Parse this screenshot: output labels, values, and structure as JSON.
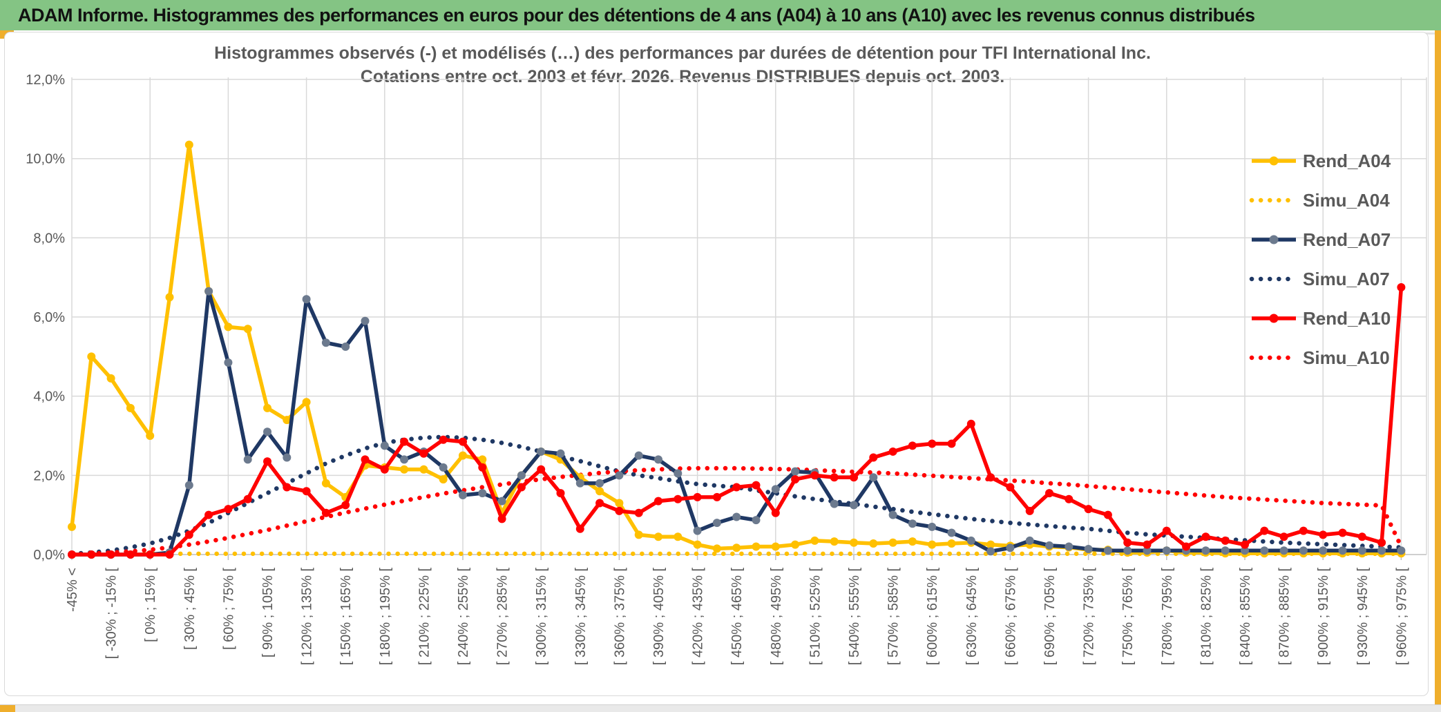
{
  "header": {
    "title": "ADAM Informe. Histogrammes des performances en euros pour des détentions de 4 ans (A04) à 10 ans (A10) avec les revenus connus distribués",
    "bg_color": "#84c484",
    "accent_gold": "#efae2c"
  },
  "chart_data": {
    "type": "line",
    "title_line1": "Histogrammes observés (-) et modélisés (…) des performances par durées de détention pour TFI International Inc.",
    "title_line2": "Cotations entre oct. 2003 et févr. 2026. Revenus DISTRIBUES depuis oct. 2003.",
    "ylim": [
      0,
      12
    ],
    "ytick_step": 2,
    "ytick_labels": [
      "0,0%",
      "2,0%",
      "4,0%",
      "6,0%",
      "8,0%",
      "10,0%",
      "12,0%"
    ],
    "grid": true,
    "legend_position": "right-upper",
    "text_color": "#595959",
    "grid_color": "#d9d9d9",
    "axis_color": "#bfbfbf",
    "categories": [
      "-45% <",
      "",
      "[ -30% ; -15% [",
      "",
      "[ 0% ; 15% [",
      "",
      "[ 30% ; 45% [",
      "",
      "[ 60% ; 75% [",
      "",
      "[ 90% ; 105% [",
      "",
      "[ 120% ; 135% [",
      "",
      "[ 150% ; 165% [",
      "",
      "[ 180% ; 195% [",
      "",
      "[ 210% ; 225% [",
      "",
      "[ 240% ; 255% [",
      "",
      "[ 270% ; 285% [",
      "",
      "[ 300% ; 315% [",
      "",
      "[ 330% ; 345% [",
      "",
      "[ 360% ; 375% [",
      "",
      "[ 390% ; 405% [",
      "",
      "[ 420% ; 435% [",
      "",
      "[ 450% ; 465% [",
      "",
      "[ 480% ; 495% [",
      "",
      "[ 510% ; 525% [",
      "",
      "[ 540% ; 555% [",
      "",
      "[ 570% ; 585% [",
      "",
      "[ 600% ; 615% [",
      "",
      "[ 630% ; 645% [",
      "",
      "[ 660% ; 675% [",
      "",
      "[ 690% ; 705% [",
      "",
      "[ 720% ; 735% [",
      "",
      "[ 750% ; 765% [",
      "",
      "[ 780% ; 795% [",
      "",
      "[ 810% ; 825% [",
      "",
      "[ 840% ; 855% [",
      "",
      "[ 870% ; 885% [",
      "",
      "[ 900% ; 915% [",
      "",
      "[ 930% ; 945% [",
      "",
      "[ 960% ; 975% ["
    ],
    "series": [
      {
        "name": "Rend_A04",
        "color": "#FFC000",
        "style": "solid",
        "marker_color": "#FFC000",
        "values": [
          0.7,
          5.0,
          4.45,
          3.7,
          3.0,
          6.5,
          10.35,
          6.65,
          5.75,
          5.7,
          3.7,
          3.4,
          3.85,
          1.8,
          1.45,
          2.25,
          2.2,
          2.15,
          2.15,
          1.9,
          2.5,
          2.4,
          1.05,
          2.0,
          2.6,
          2.4,
          1.95,
          1.6,
          1.3,
          0.5,
          0.45,
          0.45,
          0.25,
          0.15,
          0.17,
          0.2,
          0.2,
          0.25,
          0.35,
          0.33,
          0.3,
          0.28,
          0.3,
          0.33,
          0.25,
          0.28,
          0.3,
          0.25,
          0.22,
          0.25,
          0.2,
          0.18,
          0.12,
          0.12,
          0.05,
          0.05,
          0.1,
          0.05,
          0.05,
          0.03,
          0.03,
          0.03,
          0.03,
          0.03,
          0.03,
          0.03,
          0.03,
          0.03,
          0.03
        ]
      },
      {
        "name": "Simu_A04",
        "color": "#FFC000",
        "style": "dotted",
        "values": [
          0.02,
          0.02,
          0.02,
          0.02,
          0.02,
          0.02,
          0.02,
          0.02,
          0.02,
          0.02,
          0.02,
          0.02,
          0.02,
          0.02,
          0.02,
          0.02,
          0.02,
          0.02,
          0.02,
          0.02,
          0.02,
          0.02,
          0.02,
          0.02,
          0.02,
          0.02,
          0.02,
          0.02,
          0.02,
          0.02,
          0.02,
          0.02,
          0.02,
          0.02,
          0.02,
          0.02,
          0.02,
          0.02,
          0.02,
          0.02,
          0.02,
          0.02,
          0.02,
          0.02,
          0.02,
          0.02,
          0.02,
          0.02,
          0.02,
          0.02,
          0.02,
          0.02,
          0.02,
          0.02,
          0.02,
          0.02,
          0.02,
          0.02,
          0.02,
          0.02,
          0.02,
          0.02,
          0.02,
          0.02,
          0.02,
          0.02,
          0.02,
          0.02,
          0.02
        ]
      },
      {
        "name": "Rend_A07",
        "color": "#1F3864",
        "style": "solid",
        "marker_color": "#6C7A8E",
        "values": [
          0,
          0,
          0,
          0,
          0,
          0.05,
          1.75,
          6.65,
          4.85,
          2.4,
          3.1,
          2.45,
          6.45,
          5.35,
          5.25,
          5.9,
          2.75,
          2.4,
          2.6,
          2.2,
          1.5,
          1.55,
          1.35,
          2.0,
          2.6,
          2.55,
          1.8,
          1.8,
          2.0,
          2.5,
          2.4,
          2.05,
          0.6,
          0.8,
          0.95,
          0.87,
          1.65,
          2.1,
          2.07,
          1.28,
          1.25,
          1.95,
          1.0,
          0.78,
          0.7,
          0.55,
          0.35,
          0.08,
          0.17,
          0.35,
          0.23,
          0.2,
          0.14,
          0.1,
          0.1,
          0.1,
          0.1,
          0.1,
          0.1,
          0.1,
          0.1,
          0.1,
          0.1,
          0.1,
          0.1,
          0.1,
          0.1,
          0.1,
          0.1
        ]
      },
      {
        "name": "Simu_A07",
        "color": "#1F3864",
        "style": "dotted",
        "values": [
          0.02,
          0.05,
          0.1,
          0.18,
          0.28,
          0.42,
          0.6,
          0.8,
          1.05,
          1.3,
          1.55,
          1.8,
          2.05,
          2.3,
          2.5,
          2.68,
          2.82,
          2.9,
          2.95,
          2.97,
          2.95,
          2.9,
          2.82,
          2.72,
          2.6,
          2.48,
          2.36,
          2.23,
          2.1,
          2.0,
          1.93,
          1.85,
          1.78,
          1.74,
          1.7,
          1.62,
          1.55,
          1.47,
          1.4,
          1.34,
          1.28,
          1.21,
          1.15,
          1.08,
          1.02,
          0.96,
          0.9,
          0.85,
          0.8,
          0.76,
          0.72,
          0.68,
          0.65,
          0.6,
          0.55,
          0.51,
          0.48,
          0.45,
          0.42,
          0.39,
          0.36,
          0.33,
          0.3,
          0.28,
          0.26,
          0.24,
          0.22,
          0.2,
          0.18
        ]
      },
      {
        "name": "Rend_A10",
        "color": "#FF0000",
        "style": "solid",
        "marker_color": "#FF0000",
        "values": [
          0,
          0,
          0,
          0,
          0,
          0,
          0.5,
          1.0,
          1.15,
          1.4,
          2.35,
          1.7,
          1.6,
          1.05,
          1.25,
          2.4,
          2.15,
          2.85,
          2.55,
          2.9,
          2.85,
          2.2,
          0.9,
          1.7,
          2.15,
          1.55,
          0.65,
          1.3,
          1.1,
          1.05,
          1.35,
          1.4,
          1.45,
          1.45,
          1.7,
          1.75,
          1.05,
          1.9,
          2.0,
          1.95,
          1.95,
          2.45,
          2.6,
          2.75,
          2.8,
          2.8,
          3.3,
          1.95,
          1.7,
          1.1,
          1.55,
          1.4,
          1.15,
          1.0,
          0.3,
          0.25,
          0.6,
          0.2,
          0.45,
          0.35,
          0.25,
          0.6,
          0.45,
          0.6,
          0.5,
          0.55,
          0.45,
          0.3,
          6.75
        ]
      },
      {
        "name": "Simu_A10",
        "color": "#FF0000",
        "style": "dotted",
        "values": [
          0.0,
          0.02,
          0.05,
          0.08,
          0.12,
          0.18,
          0.25,
          0.33,
          0.42,
          0.52,
          0.62,
          0.73,
          0.84,
          0.95,
          1.06,
          1.16,
          1.26,
          1.36,
          1.45,
          1.54,
          1.62,
          1.7,
          1.77,
          1.84,
          1.9,
          1.96,
          2.01,
          2.06,
          2.1,
          2.13,
          2.15,
          2.17,
          2.18,
          2.18,
          2.18,
          2.17,
          2.16,
          2.15,
          2.13,
          2.11,
          2.09,
          2.07,
          2.05,
          2.02,
          1.99,
          1.96,
          1.93,
          1.9,
          1.87,
          1.84,
          1.8,
          1.77,
          1.73,
          1.69,
          1.65,
          1.61,
          1.57,
          1.53,
          1.49,
          1.45,
          1.42,
          1.39,
          1.36,
          1.33,
          1.3,
          1.28,
          1.26,
          1.24,
          0.2
        ]
      }
    ],
    "legend": [
      {
        "label": "Rend_A04"
      },
      {
        "label": "Simu_A04"
      },
      {
        "label": "Rend_A07"
      },
      {
        "label": "Simu_A07"
      },
      {
        "label": "Rend_A10"
      },
      {
        "label": "Simu_A10"
      }
    ]
  }
}
